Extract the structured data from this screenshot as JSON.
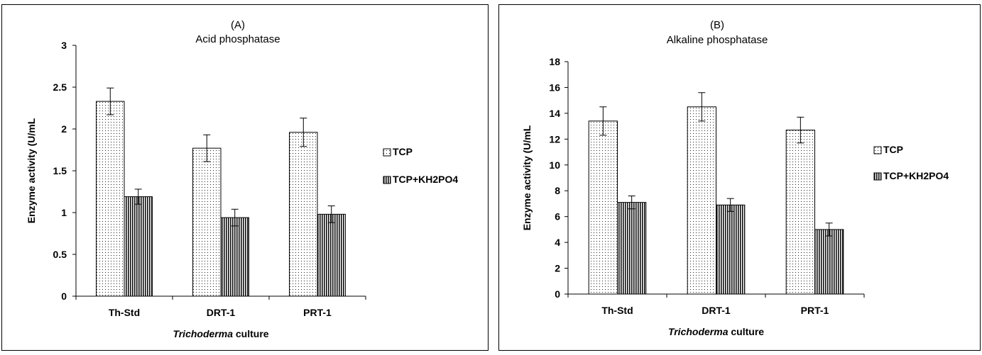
{
  "chart_data": [
    {
      "type": "bar",
      "panel_label": "(A)",
      "title": "Acid phosphatase",
      "xlabel_italic": "Trichoderma",
      "xlabel_rest": " culture",
      "ylabel": "Enzyme activity (U/mL",
      "categories": [
        "Th-Std",
        "DRT-1",
        "PRT-1"
      ],
      "ylim": [
        0,
        3
      ],
      "yticks": [
        0,
        0.5,
        1,
        1.5,
        2,
        2.5,
        3
      ],
      "ytick_labels": [
        "0",
        "0.5",
        "1",
        "1.5",
        "2",
        "2.5",
        "3"
      ],
      "series": [
        {
          "name": "TCP",
          "values": [
            2.33,
            1.77,
            1.96
          ],
          "errors": [
            0.16,
            0.16,
            0.17
          ]
        },
        {
          "name": "TCP+KH2PO4",
          "values": [
            1.19,
            0.94,
            0.98
          ],
          "errors": [
            0.09,
            0.1,
            0.1
          ]
        }
      ],
      "legend": "right"
    },
    {
      "type": "bar",
      "panel_label": "(B)",
      "title": "Alkaline phosphatase",
      "xlabel_italic": "Trichoderma",
      "xlabel_rest": " culture",
      "ylabel": "Enzyme activity (U/mL",
      "categories": [
        "Th-Std",
        "DRT-1",
        "PRT-1"
      ],
      "ylim": [
        0,
        18
      ],
      "yticks": [
        0,
        2,
        4,
        6,
        8,
        10,
        12,
        14,
        16,
        18
      ],
      "ytick_labels": [
        "0",
        "2",
        "4",
        "6",
        "8",
        "10",
        "12",
        "14",
        "16",
        "18"
      ],
      "series": [
        {
          "name": "TCP",
          "values": [
            13.4,
            14.5,
            12.7
          ],
          "errors": [
            1.1,
            1.1,
            1.0
          ]
        },
        {
          "name": "TCP+KH2PO4",
          "values": [
            7.1,
            6.9,
            5.0
          ],
          "errors": [
            0.5,
            0.5,
            0.5
          ]
        }
      ],
      "legend": "right"
    }
  ]
}
